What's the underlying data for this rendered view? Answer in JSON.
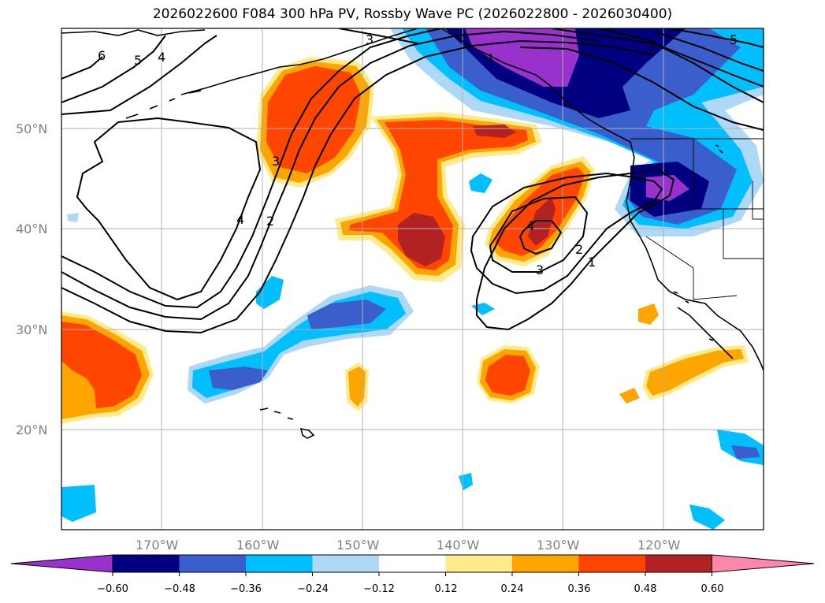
{
  "title": "2026022600 F084 300 hPa PV, Rossby Wave PC (2026022800 - 2026030400)",
  "latitude_labels": [
    "50°N",
    "40°N",
    "30°N",
    "20°N"
  ],
  "longitude_labels": [
    "170°W",
    "160°W",
    "150°W",
    "140°W",
    "130°W",
    "120°W"
  ],
  "colorbar": {
    "colors": [
      "#9932cc",
      "#000080",
      "#3a5fcd",
      "#00bfff",
      "#add8f6",
      "#ffffff",
      "#ffeb8c",
      "#ffa500",
      "#ff4500",
      "#b22222",
      "#ff87ab"
    ],
    "tick_labels": [
      "−0.60",
      "−0.48",
      "−0.36",
      "−0.24",
      "−0.12",
      "0.12",
      "0.24",
      "0.36",
      "0.48",
      "0.60"
    ]
  },
  "contour_labels": [
    "6",
    "5",
    "4",
    "3",
    "1",
    "5",
    "3",
    "3",
    "4",
    "2",
    "4",
    "3",
    "2",
    "1"
  ],
  "colors": {
    "grid": "#b0b0b0",
    "contour": "#000000",
    "coast": "#000000"
  }
}
